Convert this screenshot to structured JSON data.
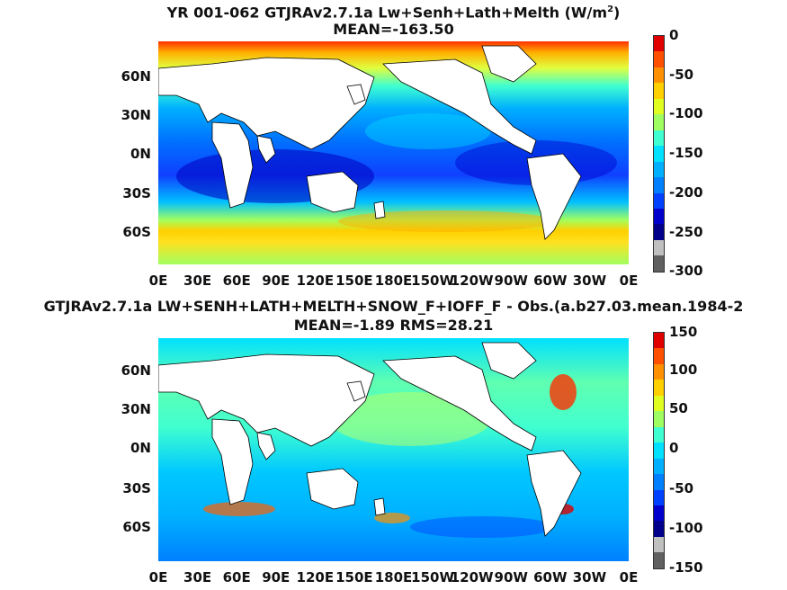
{
  "top": {
    "title_prefix": "YR 001-062 GTJRAv2.7.1a Lw+Senh+Lath+Melth (W/m",
    "title_sup": "2",
    "title_suffix": ")",
    "subtitle": "MEAN=-163.50",
    "lat_labels": [
      "60N",
      "30N",
      "0N",
      "30S",
      "60S"
    ],
    "colorbar_labels": [
      "0",
      "-50",
      "-100",
      "-150",
      "-200",
      "-250",
      "-300"
    ]
  },
  "bottom": {
    "title": "GTJRAv2.7.1a LW+SENH+LATH+MELTH+SNOW_F+IOFF_F - Obs.(a.b27.03.mean.1984-2",
    "subtitle": "MEAN=-1.89 RMS=28.21",
    "lat_labels": [
      "60N",
      "30N",
      "0N",
      "30S",
      "60S"
    ],
    "colorbar_labels": [
      "150",
      "100",
      "50",
      "0",
      "-50",
      "-100",
      "-150"
    ]
  },
  "lon_labels": [
    "0E",
    "30E",
    "60E",
    "90E",
    "120E",
    "150E",
    "180E",
    "150W",
    "120W",
    "90W",
    "60W",
    "30W",
    "0E"
  ],
  "colors": {
    "colorbar": [
      "#606060",
      "#c0c0c0",
      "#00008b",
      "#0000cd",
      "#0040ff",
      "#0080ff",
      "#00b0ff",
      "#00e0ff",
      "#40ffd0",
      "#a0ff60",
      "#e0ff20",
      "#ffd000",
      "#ff9000",
      "#ff5000",
      "#e00000"
    ],
    "land": "#ffffff",
    "coastline": "#000000"
  }
}
